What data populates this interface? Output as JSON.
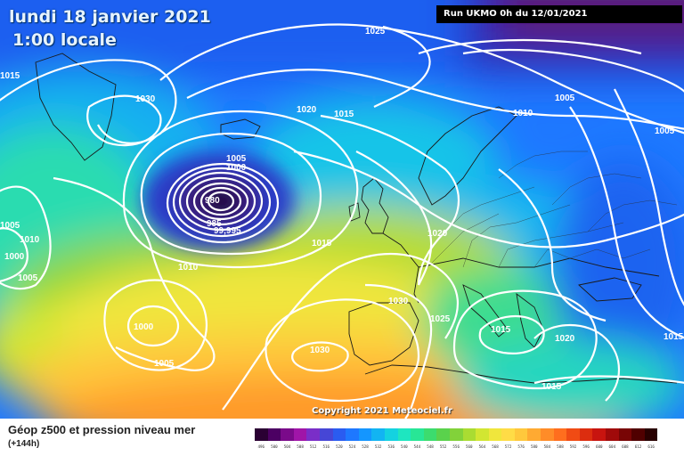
{
  "title": {
    "date": "lundi 18 janvier 2021",
    "time": "1:00 locale"
  },
  "run_info": "Run UKMO 0h du 12/01/2021",
  "copyright": "Copyright 2021 Meteociel.fr",
  "footer": {
    "title": "Géop z500 et pression niveau mer",
    "subtitle": "(+144h)"
  },
  "low_center": {
    "pressure": "980"
  },
  "isobar_labels": [
    "1025",
    "1015",
    "1030",
    "1020",
    "1015",
    "1010",
    "1005",
    "1005",
    "1005",
    "1000",
    "980",
    "985",
    "99,995",
    "1015",
    "1020",
    "1015",
    "1010",
    "1000",
    "1005",
    "1030",
    "1025",
    "1015",
    "1020",
    "1015",
    "1010",
    "1000",
    "1005",
    "1030",
    "1015",
    "1005"
  ],
  "legend_scale": {
    "values": [
      "496",
      "500",
      "504",
      "508",
      "512",
      "516",
      "520",
      "524",
      "528",
      "532",
      "536",
      "540",
      "544",
      "548",
      "552",
      "556",
      "560",
      "564",
      "568",
      "572",
      "576",
      "580",
      "584",
      "588",
      "592",
      "596",
      "600",
      "604",
      "608",
      "612",
      "616"
    ],
    "colors": [
      "#2a0033",
      "#4c0063",
      "#7a0a8a",
      "#a015a8",
      "#7a2ec8",
      "#4646d6",
      "#2a5cf0",
      "#1e78ff",
      "#1496ff",
      "#12b4f2",
      "#14d2e0",
      "#1ee6c0",
      "#28e696",
      "#3cdc6e",
      "#5ad24c",
      "#82d23a",
      "#aadc32",
      "#d2e632",
      "#f0e63c",
      "#ffdc46",
      "#ffc83c",
      "#ffaa32",
      "#ff8c28",
      "#ff6e1e",
      "#f04b14",
      "#dc2d0f",
      "#c8140f",
      "#a00a0a",
      "#780505",
      "#500000",
      "#280000"
    ]
  }
}
